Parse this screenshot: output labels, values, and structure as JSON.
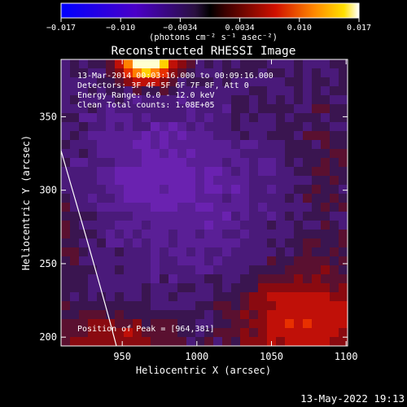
{
  "colorbar": {
    "ticks": [
      "−0.017",
      "−0.010",
      "−0.0034",
      "0.0034",
      "0.010",
      "0.017"
    ],
    "unit_label": "(photons cm⁻² s⁻¹ asec⁻²)",
    "colors": [
      "#0000ff",
      "#5500cc",
      "#3a1f6b",
      "#8b0000",
      "#ff3300",
      "#ffcc00",
      "#ffffff"
    ]
  },
  "chart_data": {
    "type": "heatmap",
    "title": "Reconstructed RHESSI Image",
    "xlabel": "Heliocentric X (arcsec)",
    "ylabel": "Heliocentric Y (arcsec)",
    "xlim": [
      909,
      1101
    ],
    "ylim": [
      194,
      389
    ],
    "xticks": [
      950,
      1000,
      1050,
      1100
    ],
    "yticks": [
      200,
      250,
      300,
      350
    ],
    "annotations": [
      "13-Mar-2014 00:03:16.000 to 00:09:16.000",
      "Detectors: 3F 4F 5F 6F 7F 8F, Att 0",
      "Energy Range: 6.0 - 12.0 keV",
      "Clean    Total counts: 1.08E+05"
    ],
    "peak_label": "Position of Peak = [964,381]",
    "peak": [
      964,
      381
    ]
  },
  "footer": {
    "timestamp": "13-May-2022 19:13"
  }
}
